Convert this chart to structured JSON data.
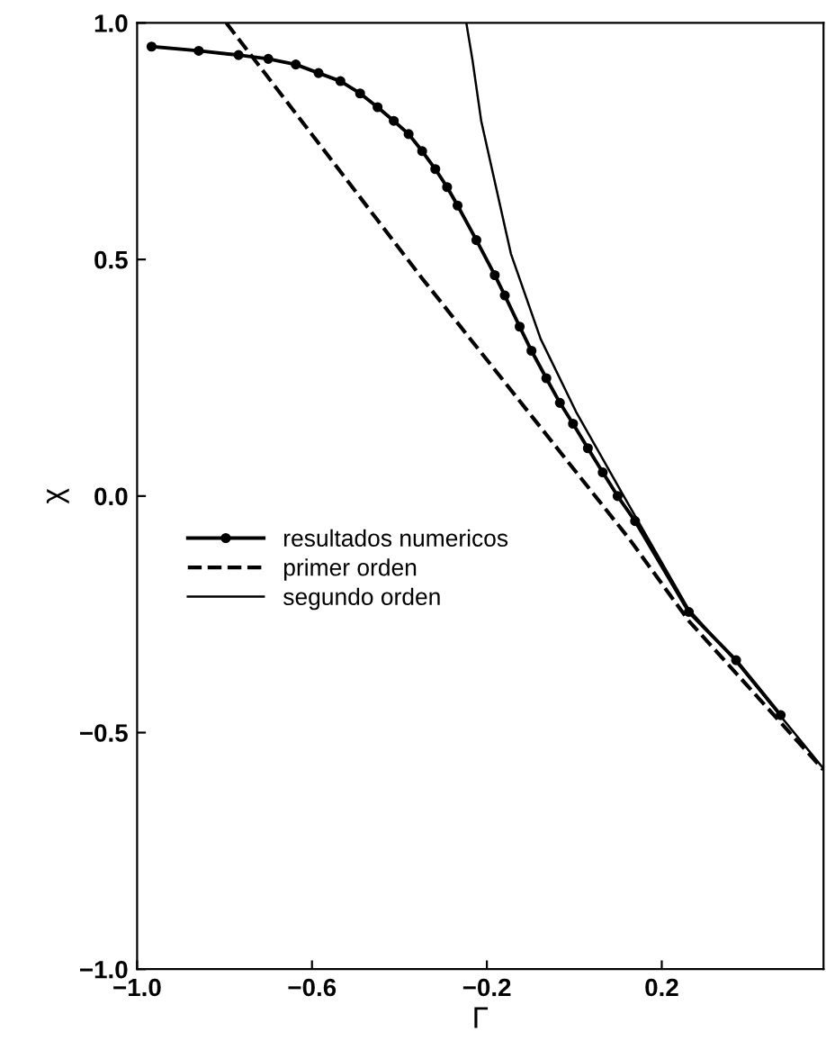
{
  "chart_data": {
    "type": "line",
    "xlabel": "Γ",
    "ylabel": "χ",
    "xlim": [
      -1.0,
      0.57
    ],
    "ylim": [
      -1.0,
      1.0
    ],
    "xticks": [
      {
        "value": -1.0,
        "label": "−1.0"
      },
      {
        "value": -0.6,
        "label": "−0.6"
      },
      {
        "value": -0.2,
        "label": "−0.2"
      },
      {
        "value": 0.2,
        "label": "0.2"
      }
    ],
    "yticks": [
      {
        "value": -1.0,
        "label": "−1.0"
      },
      {
        "value": -0.5,
        "label": "−0.5"
      },
      {
        "value": 0.0,
        "label": "0.0"
      },
      {
        "value": 0.5,
        "label": "0.5"
      },
      {
        "value": 1.0,
        "label": "1.0"
      }
    ],
    "grid": false,
    "legend": "left",
    "series": [
      {
        "name": "resultados numericos",
        "color": "#000000",
        "marker": "circle",
        "line_style": "solid",
        "x": [
          -0.967,
          -0.859,
          -0.768,
          -0.7,
          -0.637,
          -0.585,
          -0.535,
          -0.49,
          -0.45,
          -0.413,
          -0.379,
          -0.348,
          -0.318,
          -0.291,
          -0.267,
          -0.224,
          -0.182,
          -0.159,
          -0.125,
          -0.098,
          -0.064,
          -0.033,
          -0.003,
          0.031,
          0.065,
          0.099,
          0.139,
          0.262,
          0.37,
          0.472
        ],
        "values": [
          0.95,
          0.941,
          0.932,
          0.924,
          0.912,
          0.894,
          0.877,
          0.851,
          0.822,
          0.793,
          0.765,
          0.729,
          0.691,
          0.653,
          0.614,
          0.541,
          0.467,
          0.424,
          0.358,
          0.307,
          0.249,
          0.197,
          0.153,
          0.101,
          0.05,
          0.0,
          -0.053,
          -0.245,
          -0.347,
          -0.463
        ]
      },
      {
        "name": "primer orden",
        "color": "#000000",
        "marker": "none",
        "line_style": "dashed",
        "x": [
          -0.796,
          -0.6,
          -0.348,
          0.126,
          0.262,
          0.569
        ],
        "values": [
          1.0,
          0.764,
          0.46,
          -0.091,
          -0.264,
          -0.578
        ]
      },
      {
        "name": "segundo orden",
        "color": "#000000",
        "marker": "none",
        "line_style": "solid",
        "x": [
          -0.247,
          -0.233,
          -0.213,
          -0.145,
          -0.077,
          0.004,
          0.113,
          0.262,
          0.37,
          0.569
        ],
        "values": [
          1.0,
          0.922,
          0.793,
          0.512,
          0.332,
          0.178,
          0.0,
          -0.24,
          -0.35,
          -0.575
        ]
      }
    ]
  }
}
